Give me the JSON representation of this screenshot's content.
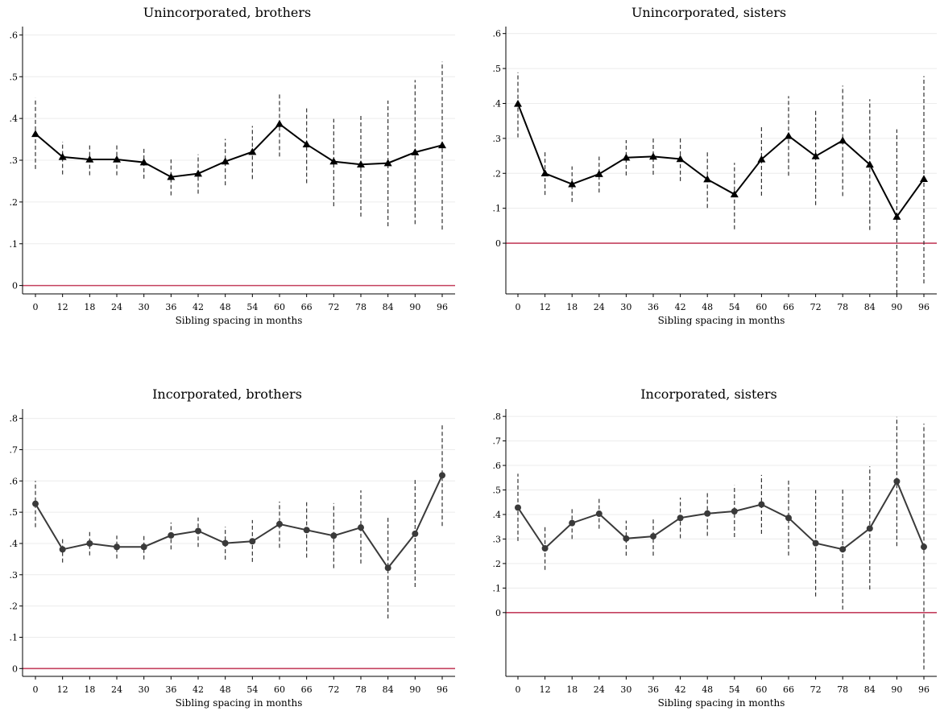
{
  "chart_data": [
    {
      "type": "line",
      "title": "Unincorporated, brothers",
      "xlabel": "Sibling spacing in months",
      "ylabel": "",
      "categories": [
        "0",
        "12",
        "18",
        "24",
        "30",
        "36",
        "42",
        "48",
        "54",
        "60",
        "66",
        "72",
        "78",
        "84",
        "90",
        "96"
      ],
      "yticks": [
        "0",
        ".1",
        ".2",
        ".3",
        ".4",
        ".5",
        ".6"
      ],
      "ylim": [
        -0.02,
        0.62
      ],
      "ref_line": 0,
      "marker": "triangle",
      "line_color": "#000000",
      "ref_color": "#c4405e",
      "grid": true,
      "series": [
        {
          "values": [
            0.363,
            0.308,
            0.302,
            0.302,
            0.295,
            0.26,
            0.268,
            0.297,
            0.32,
            0.387,
            0.338,
            0.297,
            0.29,
            0.293,
            0.319,
            0.336
          ],
          "ci_low": [
            0.279,
            0.266,
            0.264,
            0.264,
            0.256,
            0.216,
            0.22,
            0.24,
            0.255,
            0.309,
            0.245,
            0.19,
            0.165,
            0.142,
            0.147,
            0.134
          ],
          "ci_high": [
            0.449,
            0.344,
            0.337,
            0.338,
            0.332,
            0.302,
            0.314,
            0.351,
            0.382,
            0.462,
            0.424,
            0.399,
            0.41,
            0.443,
            0.492,
            0.536
          ]
        }
      ]
    },
    {
      "type": "line",
      "title": "Unincorporated, sisters",
      "xlabel": "Sibling spacing in months",
      "ylabel": "",
      "categories": [
        "0",
        "12",
        "18",
        "24",
        "30",
        "36",
        "42",
        "48",
        "54",
        "60",
        "66",
        "72",
        "78",
        "84",
        "90",
        "96"
      ],
      "yticks": [
        "0",
        ".1",
        ".2",
        ".3",
        ".4",
        ".5",
        ".6"
      ],
      "ylim": [
        -0.145,
        0.62
      ],
      "ref_line": 0,
      "marker": "triangle",
      "line_color": "#000000",
      "ref_color": "#c4405e",
      "grid": true,
      "series": [
        {
          "values": [
            0.399,
            0.2,
            0.169,
            0.198,
            0.245,
            0.248,
            0.241,
            0.183,
            0.14,
            0.24,
            0.307,
            0.249,
            0.294,
            0.225,
            0.076,
            0.184
          ],
          "ci_low": [
            0.303,
            0.138,
            0.118,
            0.145,
            0.194,
            0.196,
            0.178,
            0.101,
            0.04,
            0.136,
            0.193,
            0.109,
            0.135,
            0.038,
            -0.145,
            -0.115
          ],
          "ci_high": [
            0.489,
            0.261,
            0.22,
            0.248,
            0.295,
            0.301,
            0.3,
            0.26,
            0.23,
            0.339,
            0.421,
            0.379,
            0.451,
            0.412,
            0.326,
            0.478
          ]
        }
      ]
    },
    {
      "type": "line",
      "title": "Incorporated, brothers",
      "xlabel": "Sibling spacing in months",
      "ylabel": "",
      "categories": [
        "0",
        "12",
        "18",
        "24",
        "30",
        "36",
        "42",
        "48",
        "54",
        "60",
        "66",
        "72",
        "78",
        "84",
        "90",
        "96"
      ],
      "yticks": [
        "0",
        ".1",
        ".2",
        ".3",
        ".4",
        ".5",
        ".6",
        ".7",
        ".8"
      ],
      "ylim": [
        -0.025,
        0.83
      ],
      "ref_line": 0,
      "marker": "circle",
      "line_color": "#3a3a3a",
      "ref_color": "#c4405e",
      "grid": true,
      "series": [
        {
          "values": [
            0.527,
            0.381,
            0.4,
            0.389,
            0.389,
            0.426,
            0.44,
            0.401,
            0.407,
            0.462,
            0.443,
            0.425,
            0.451,
            0.322,
            0.431,
            0.618
          ],
          "ci_low": [
            0.452,
            0.339,
            0.362,
            0.352,
            0.349,
            0.381,
            0.389,
            0.348,
            0.341,
            0.386,
            0.355,
            0.321,
            0.336,
            0.16,
            0.261,
            0.456
          ],
          "ci_high": [
            0.6,
            0.42,
            0.437,
            0.425,
            0.425,
            0.467,
            0.483,
            0.453,
            0.475,
            0.534,
            0.532,
            0.529,
            0.57,
            0.484,
            0.603,
            0.78
          ]
        }
      ]
    },
    {
      "type": "line",
      "title": "Incorporated, sisters",
      "xlabel": "Sibling spacing in months",
      "ylabel": "",
      "categories": [
        "0",
        "12",
        "18",
        "24",
        "30",
        "36",
        "42",
        "48",
        "54",
        "60",
        "66",
        "72",
        "78",
        "84",
        "90",
        "96"
      ],
      "yticks": [
        "0",
        ".1",
        ".2",
        ".3",
        ".4",
        ".5",
        ".6",
        ".7",
        ".8"
      ],
      "ylim": [
        -0.26,
        0.83
      ],
      "ref_line": 0,
      "marker": "circle",
      "line_color": "#3a3a3a",
      "ref_color": "#c4405e",
      "grid": true,
      "series": [
        {
          "values": [
            0.428,
            0.262,
            0.365,
            0.403,
            0.302,
            0.311,
            0.386,
            0.404,
            0.413,
            0.441,
            0.386,
            0.283,
            0.258,
            0.343,
            0.535,
            0.268
          ],
          "ci_low": [
            0.292,
            0.174,
            0.3,
            0.342,
            0.232,
            0.232,
            0.303,
            0.313,
            0.308,
            0.321,
            0.233,
            0.066,
            0.012,
            0.094,
            0.271,
            -0.232
          ],
          "ci_high": [
            0.566,
            0.35,
            0.431,
            0.466,
            0.375,
            0.389,
            0.469,
            0.49,
            0.519,
            0.561,
            0.539,
            0.5,
            0.504,
            0.596,
            0.798,
            0.77
          ]
        }
      ]
    }
  ]
}
